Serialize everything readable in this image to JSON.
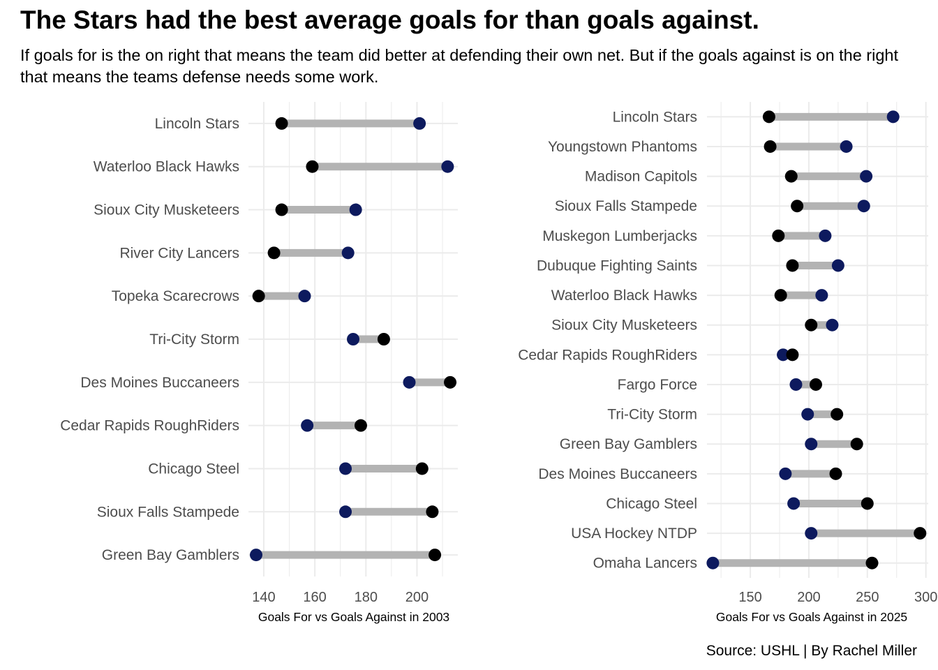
{
  "header": {
    "title": "The Stars had the best average goals for than goals against.",
    "subtitle": "If goals for is the on right that means the team did better at defending their own net. But if the goals against is on the right that means the teams defense needs some work."
  },
  "footer": {
    "source": "Source: USHL | By Rachel Miller"
  },
  "colors": {
    "goals_for": "#000000",
    "goals_against": "#0d1a5e",
    "segment": "#b3b3b3",
    "grid": "#ebebeb"
  },
  "chart_data": [
    {
      "type": "dumbbell",
      "xlabel": "Goals For vs Goals Against in 2003",
      "xlim": [
        134,
        216
      ],
      "xticks": [
        140,
        160,
        180,
        200
      ],
      "grid": true,
      "categories": [
        "Lincoln Stars",
        "Waterloo Black Hawks",
        "Sioux City Musketeers",
        "River City Lancers",
        "Topeka Scarecrows",
        "Tri-City Storm",
        "Des Moines Buccaneers",
        "Cedar Rapids RoughRiders",
        "Chicago Steel",
        "Sioux Falls Stampede",
        "Green Bay Gamblers"
      ],
      "series": [
        {
          "values": [
            147,
            159,
            147,
            144,
            138,
            187,
            213,
            178,
            202,
            206,
            207
          ]
        },
        {
          "values": [
            201,
            212,
            176,
            173,
            156,
            175,
            197,
            157,
            172,
            172,
            137
          ]
        }
      ]
    },
    {
      "type": "dumbbell",
      "xlabel": "Goals For vs Goals Against in 2025",
      "xlim": [
        113,
        302
      ],
      "xticks": [
        150,
        200,
        250,
        300
      ],
      "grid": true,
      "categories": [
        "Lincoln Stars",
        "Youngstown Phantoms",
        "Madison Capitols",
        "Sioux Falls Stampede",
        "Muskegon Lumberjacks",
        "Dubuque Fighting Saints",
        "Waterloo Black Hawks",
        "Sioux City Musketeers",
        "Cedar Rapids RoughRiders",
        "Fargo Force",
        "Tri-City Storm",
        "Green Bay Gamblers",
        "Des Moines Buccaneers",
        "Chicago Steel",
        "USA Hockey NTDP",
        "Omaha Lancers"
      ],
      "series": [
        {
          "values": [
            166,
            167,
            185,
            190,
            174,
            186,
            176,
            202,
            186,
            206,
            224,
            241,
            223,
            250,
            295,
            254
          ]
        },
        {
          "values": [
            272,
            232,
            249,
            247,
            214,
            225,
            211,
            220,
            178,
            189,
            199,
            202,
            180,
            187,
            202,
            118
          ]
        }
      ]
    }
  ]
}
